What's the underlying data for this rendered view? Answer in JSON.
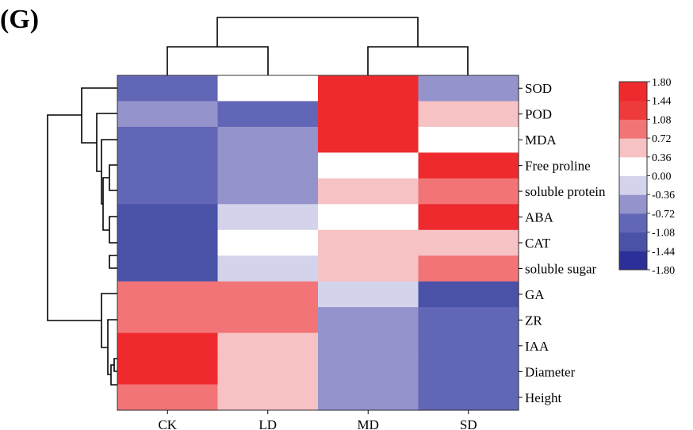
{
  "panel_label": "(G)",
  "chart_data": {
    "type": "heatmap",
    "title": "",
    "columns": [
      "CK",
      "LD",
      "MD",
      "SD"
    ],
    "rows": [
      "SOD",
      "POD",
      "MDA",
      "Free proline",
      "soluble protein",
      "ABA",
      "CAT",
      "soluble sugar",
      "GA",
      "ZR",
      "IAA",
      "Diameter",
      "Height"
    ],
    "values": [
      [
        -0.9,
        0.2,
        1.5,
        -0.6
      ],
      [
        -0.6,
        -0.9,
        1.5,
        0.6
      ],
      [
        -0.9,
        -0.6,
        1.5,
        0.2
      ],
      [
        -0.9,
        -0.6,
        0.2,
        1.5
      ],
      [
        -0.9,
        -0.6,
        0.6,
        1.0
      ],
      [
        -1.2,
        -0.3,
        0.2,
        1.5
      ],
      [
        -1.2,
        0.2,
        0.6,
        0.6
      ],
      [
        -1.2,
        -0.3,
        0.6,
        1.0
      ],
      [
        1.0,
        1.0,
        -0.3,
        -1.2
      ],
      [
        1.0,
        1.0,
        -0.6,
        -0.9
      ],
      [
        1.5,
        0.6,
        -0.6,
        -0.9
      ],
      [
        1.5,
        0.6,
        -0.6,
        -0.9
      ],
      [
        1.0,
        0.6,
        -0.6,
        -0.9
      ]
    ],
    "colorbar": {
      "min": -1.8,
      "max": 1.8,
      "ticks": [
        "1.80",
        "1.44",
        "1.08",
        "0.72",
        "0.36",
        "0.00",
        "-0.36",
        "-0.72",
        "-1.08",
        "-1.44",
        "-1.80"
      ],
      "colors": [
        "#ee2a2e",
        "#ee3a3b",
        "#f27476",
        "#f6c2c4",
        "#ffffff",
        "#d4d3ec",
        "#9493cc",
        "#6266b6",
        "#4a52a8",
        "#2b2f97"
      ]
    },
    "row_clustering": true,
    "column_clustering": true
  }
}
